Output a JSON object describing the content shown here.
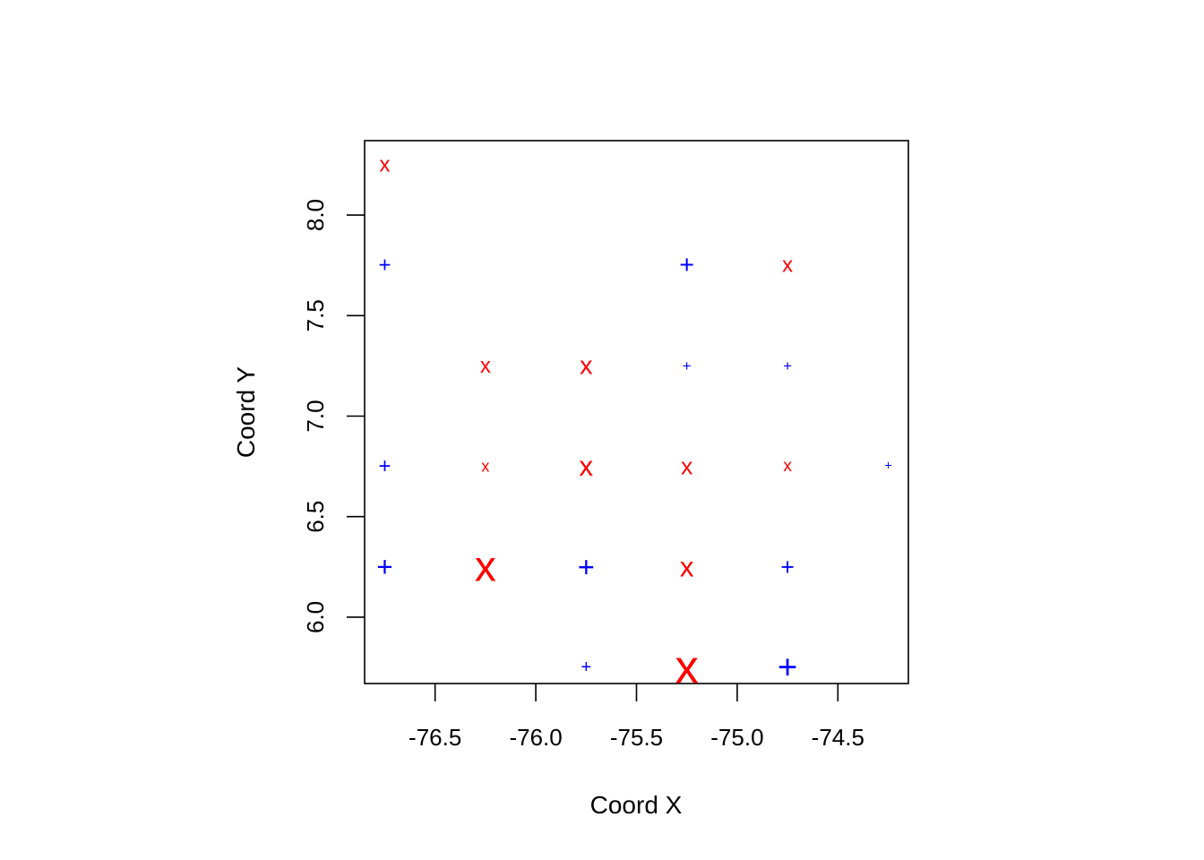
{
  "chart_data": {
    "type": "scatter",
    "title": "",
    "xlabel": "Coord X",
    "ylabel": "Coord Y",
    "xlim": [
      -76.85,
      -74.15
    ],
    "ylim": [
      5.67,
      8.37
    ],
    "xticks": [
      "-76.5",
      "-76.0",
      "-75.5",
      "-75.0",
      "-74.5"
    ],
    "yticks": [
      "6.0",
      "6.5",
      "7.0",
      "7.5",
      "8.0"
    ],
    "grid": false,
    "legend": "none",
    "marker_colors": {
      "x": "#ff0000",
      "+": "#0000ff"
    },
    "points": [
      {
        "x": -76.75,
        "y": 8.25,
        "symbol": "x",
        "size": 1.0
      },
      {
        "x": -76.75,
        "y": 7.75,
        "symbol": "+",
        "size": 1.0
      },
      {
        "x": -75.25,
        "y": 7.75,
        "symbol": "+",
        "size": 1.2
      },
      {
        "x": -74.75,
        "y": 7.75,
        "symbol": "x",
        "size": 1.0
      },
      {
        "x": -76.25,
        "y": 7.25,
        "symbol": "x",
        "size": 1.0
      },
      {
        "x": -75.75,
        "y": 7.25,
        "symbol": "x",
        "size": 1.2
      },
      {
        "x": -75.25,
        "y": 7.25,
        "symbol": "+",
        "size": 0.7
      },
      {
        "x": -74.75,
        "y": 7.25,
        "symbol": "+",
        "size": 0.7
      },
      {
        "x": -76.75,
        "y": 6.75,
        "symbol": "+",
        "size": 1.0
      },
      {
        "x": -76.25,
        "y": 6.75,
        "symbol": "x",
        "size": 0.75
      },
      {
        "x": -75.75,
        "y": 6.75,
        "symbol": "x",
        "size": 1.3
      },
      {
        "x": -75.25,
        "y": 6.75,
        "symbol": "x",
        "size": 1.1
      },
      {
        "x": -74.75,
        "y": 6.75,
        "symbol": "x",
        "size": 0.8
      },
      {
        "x": -74.25,
        "y": 6.75,
        "symbol": "+",
        "size": 0.6
      },
      {
        "x": -76.75,
        "y": 6.25,
        "symbol": "+",
        "size": 1.3
      },
      {
        "x": -76.25,
        "y": 6.25,
        "symbol": "x",
        "size": 2.0
      },
      {
        "x": -75.75,
        "y": 6.25,
        "symbol": "+",
        "size": 1.35
      },
      {
        "x": -75.25,
        "y": 6.25,
        "symbol": "x",
        "size": 1.3
      },
      {
        "x": -74.75,
        "y": 6.25,
        "symbol": "+",
        "size": 1.1
      },
      {
        "x": -75.75,
        "y": 5.75,
        "symbol": "+",
        "size": 0.85
      },
      {
        "x": -75.25,
        "y": 5.75,
        "symbol": "x",
        "size": 2.2
      },
      {
        "x": -74.75,
        "y": 5.75,
        "symbol": "+",
        "size": 1.6
      }
    ]
  }
}
